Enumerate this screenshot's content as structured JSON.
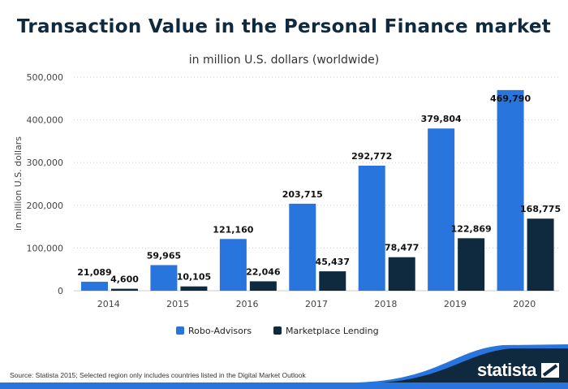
{
  "chart_data": {
    "type": "bar",
    "title": "Transaction Value in the Personal Finance market",
    "subtitle": "in million U.S. dollars (worldwide)",
    "ylabel": "in million U.S. dollars",
    "xlabel": "",
    "ylim": [
      0,
      500000
    ],
    "yticks": [
      "0",
      "100,000",
      "200,000",
      "300,000",
      "400,000",
      "500,000"
    ],
    "grid": true,
    "legend_position": "bottom",
    "categories": [
      "2014",
      "2015",
      "2016",
      "2017",
      "2018",
      "2019",
      "2020"
    ],
    "series": [
      {
        "name": "Robo-Advisors",
        "color": "#2876dd",
        "values": [
          21089,
          59965,
          121160,
          203715,
          292772,
          379804,
          469790
        ],
        "labels": [
          "21,089",
          "59,965",
          "121,160",
          "203,715",
          "292,772",
          "379,804",
          "469,790"
        ]
      },
      {
        "name": "Marketplace Lending",
        "color": "#0f2a3f",
        "values": [
          4600,
          10105,
          22046,
          45437,
          78477,
          122869,
          168775
        ],
        "labels": [
          "4,600",
          "10,105",
          "22,046",
          "45,437",
          "78,477",
          "122,869",
          "168,775"
        ]
      }
    ]
  },
  "footer": {
    "source": "Source: Statista 2015; Selected region only includes countries listed in the Digital Market Outlook",
    "logo": "statista"
  }
}
